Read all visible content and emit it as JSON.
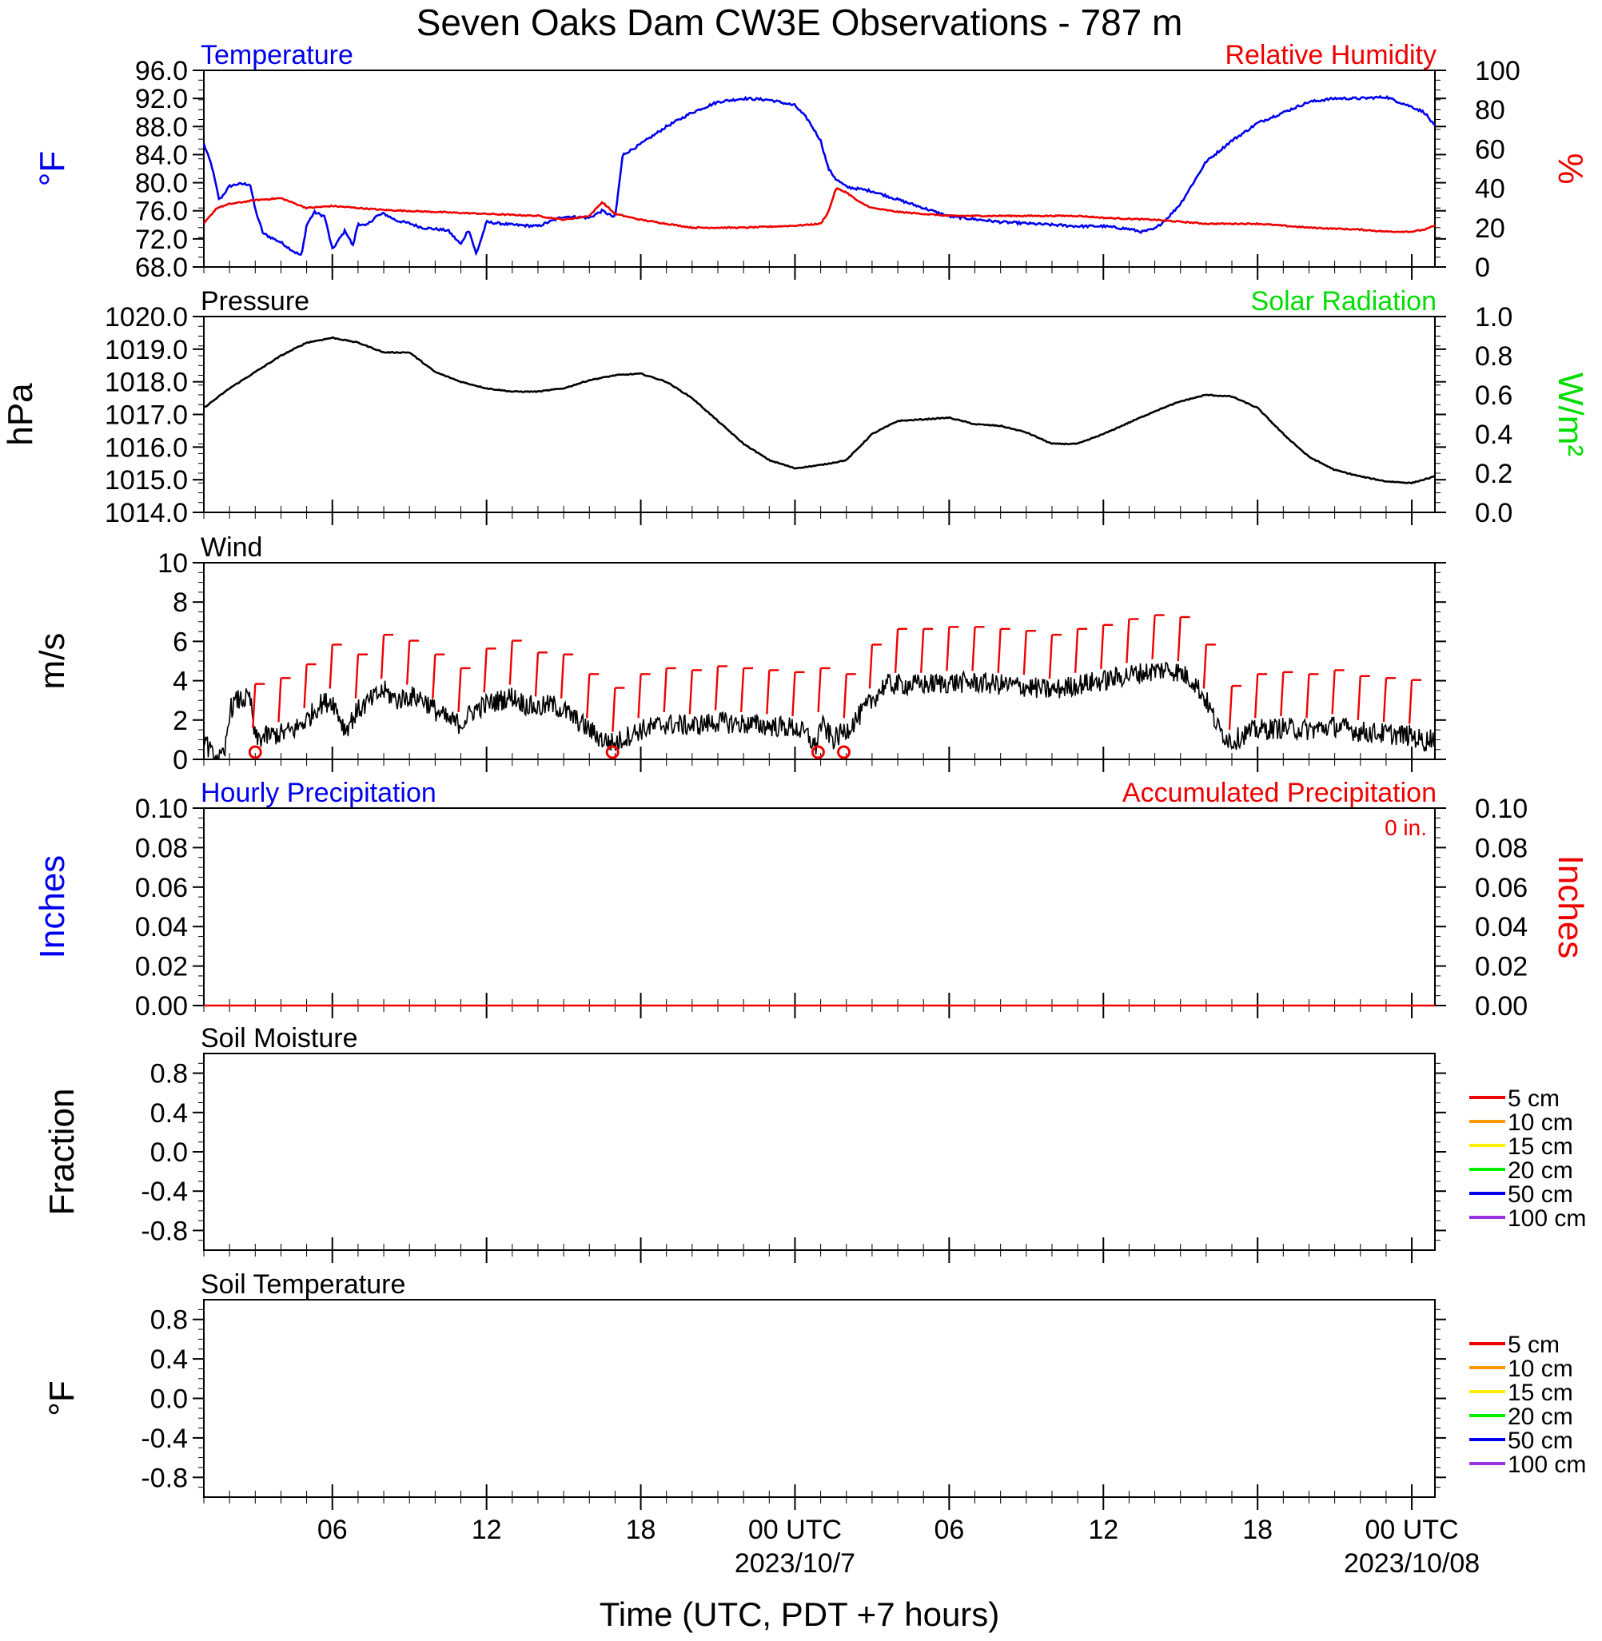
{
  "title": "Seven Oaks Dam CW3E Observations - 787 m",
  "xaxis": {
    "title": "Time (UTC, PDT +7 hours)",
    "ticks": [
      {
        "hour": 6,
        "label": "06",
        "sub": ""
      },
      {
        "hour": 12,
        "label": "12",
        "sub": ""
      },
      {
        "hour": 18,
        "label": "18",
        "sub": ""
      },
      {
        "hour": 24,
        "label": "00 UTC",
        "sub": "2023/10/7"
      },
      {
        "hour": 30,
        "label": "06",
        "sub": ""
      },
      {
        "hour": 36,
        "label": "12",
        "sub": ""
      },
      {
        "hour": 42,
        "label": "18",
        "sub": ""
      },
      {
        "hour": 48,
        "label": "00 UTC",
        "sub": "2023/10/08"
      }
    ],
    "range_hours": [
      1,
      48.9
    ]
  },
  "colors": {
    "temperature": "#0000ee",
    "humidity": "#ee0000",
    "pressure": "#000000",
    "solar": "#00dd00",
    "wind": "#000000",
    "barbs": "#ee0000"
  },
  "chart_data": [
    {
      "type": "line",
      "panel": "temperature-humidity",
      "left_title": "Temperature",
      "right_title": "Relative Humidity",
      "ylabel_left": "°F",
      "ylabel_right": "%",
      "ylim_left": [
        68,
        96
      ],
      "ylim_right": [
        0,
        100
      ],
      "yticks_left": [
        "96.0",
        "92.0",
        "88.0",
        "84.0",
        "80.0",
        "76.0",
        "72.0",
        "68.0"
      ],
      "yticks_right": [
        "100",
        "80",
        "60",
        "40",
        "20",
        "0"
      ],
      "series": [
        {
          "name": "Temperature",
          "axis": "left",
          "x": [
            1,
            1.3,
            1.6,
            2.0,
            2.3,
            2.8,
            3.0,
            3.3,
            3.5,
            4.0,
            4.5,
            4.8,
            5.0,
            5.3,
            5.7,
            6.0,
            6.5,
            6.8,
            7.0,
            7.3,
            7.7,
            8.0,
            8.5,
            9.0,
            9.5,
            10.0,
            10.5,
            11.0,
            11.3,
            11.6,
            12.0,
            13.0,
            14.0,
            15.0,
            16.0,
            16.5,
            17.0,
            17.3,
            17.6,
            18.0,
            19.0,
            20.0,
            21.0,
            22.0,
            23.0,
            24.0,
            24.5,
            25.0,
            25.3,
            25.6,
            26.0,
            27.0,
            28.0,
            29.0,
            30.0,
            31.0,
            32.0,
            33.0,
            34.0,
            35.0,
            36.0,
            37.0,
            37.5,
            38.0,
            38.5,
            39.0,
            39.5,
            40.0,
            40.5,
            41.0,
            41.5,
            42.0,
            43.0,
            44.0,
            45.0,
            46.0,
            47.0,
            47.5,
            48.0,
            48.5,
            48.9
          ],
          "values": [
            85.5,
            82.5,
            77.5,
            79.5,
            79.8,
            79.8,
            76.2,
            72.8,
            72.4,
            71.5,
            70.2,
            69.6,
            74.0,
            75.8,
            75.2,
            70.5,
            73.2,
            71.0,
            74.2,
            73.8,
            75.2,
            75.6,
            74.6,
            74.2,
            73.6,
            73.4,
            73.2,
            71.2,
            73.4,
            69.8,
            74.4,
            74.0,
            73.8,
            75.2,
            75.0,
            76.0,
            75.0,
            84.0,
            84.6,
            85.5,
            88.0,
            90.0,
            91.5,
            92.0,
            91.8,
            91.0,
            89.0,
            86.0,
            82.0,
            80.5,
            79.4,
            78.8,
            77.6,
            76.4,
            75.2,
            74.8,
            74.4,
            74.2,
            74.0,
            73.8,
            73.8,
            73.4,
            73.0,
            73.4,
            75.0,
            77.0,
            80.0,
            83.0,
            84.5,
            86.0,
            87.2,
            88.5,
            90.0,
            91.5,
            92.0,
            92.0,
            92.2,
            91.5,
            90.8,
            90.0,
            88.0
          ]
        },
        {
          "name": "Relative Humidity",
          "axis": "right",
          "x": [
            1,
            1.5,
            2.0,
            3.0,
            4.0,
            5.0,
            6.0,
            8.0,
            10.0,
            12.0,
            14.0,
            15.0,
            16.0,
            16.5,
            17.0,
            18.0,
            19.0,
            20.0,
            22.0,
            24.0,
            25.0,
            25.3,
            25.6,
            26.0,
            26.5,
            27.0,
            28.0,
            30.0,
            32.0,
            34.0,
            35.0,
            36.0,
            38.0,
            40.0,
            42.0,
            44.0,
            46.0,
            47.0,
            48.0,
            48.5,
            48.9
          ],
          "values": [
            22,
            30,
            32,
            34,
            35,
            30,
            31,
            29,
            28,
            27,
            26,
            24,
            26,
            33,
            27,
            24,
            22,
            20,
            20,
            21,
            22,
            28,
            40,
            38,
            33,
            30,
            28,
            26,
            26,
            26,
            26,
            25,
            24,
            22,
            22,
            20,
            19,
            18,
            18,
            19,
            21
          ]
        }
      ]
    },
    {
      "type": "line",
      "panel": "pressure-solar",
      "left_title": "Pressure",
      "right_title": "Solar Radiation",
      "ylabel_left": "hPa",
      "ylabel_right": "W/m²",
      "ylim_left": [
        1014,
        1020
      ],
      "ylim_right": [
        0,
        1
      ],
      "yticks_left": [
        "1020.0",
        "1019.0",
        "1018.0",
        "1017.0",
        "1016.0",
        "1015.0",
        "1014.0"
      ],
      "yticks_right": [
        "1.0",
        "0.8",
        "0.6",
        "0.4",
        "0.2",
        "0.0"
      ],
      "series": [
        {
          "name": "Pressure",
          "axis": "left",
          "x": [
            1,
            2,
            3,
            4,
            5,
            6,
            7,
            8,
            9,
            10,
            11,
            12,
            13,
            14,
            15,
            16,
            17,
            18,
            19,
            20,
            21,
            22,
            23,
            24,
            25,
            26,
            27,
            28,
            29,
            30,
            31,
            32,
            33,
            34,
            35,
            36,
            37,
            38,
            39,
            40,
            41,
            42,
            43,
            44,
            45,
            46,
            47,
            48,
            48.9
          ],
          "values": [
            1017.2,
            1017.8,
            1018.3,
            1018.8,
            1019.2,
            1019.35,
            1019.2,
            1018.9,
            1018.9,
            1018.3,
            1018.0,
            1017.8,
            1017.7,
            1017.7,
            1017.8,
            1018.05,
            1018.2,
            1018.25,
            1018.0,
            1017.5,
            1016.8,
            1016.1,
            1015.6,
            1015.35,
            1015.45,
            1015.6,
            1016.4,
            1016.8,
            1016.85,
            1016.9,
            1016.7,
            1016.65,
            1016.45,
            1016.1,
            1016.1,
            1016.4,
            1016.75,
            1017.1,
            1017.4,
            1017.6,
            1017.55,
            1017.2,
            1016.4,
            1015.7,
            1015.3,
            1015.1,
            1014.95,
            1014.9,
            1015.1
          ]
        }
      ]
    },
    {
      "type": "line",
      "panel": "wind",
      "left_title": "Wind",
      "ylabel_left": "m/s",
      "ylim_left": [
        0,
        10
      ],
      "yticks_left": [
        "10",
        "8",
        "6",
        "4",
        "2",
        "0"
      ],
      "series": [
        {
          "name": "Wind speed",
          "axis": "left",
          "x": [
            1,
            1.3,
            1.6,
            1.8,
            2.0,
            2.3,
            2.8,
            3.0,
            3.5,
            4.0,
            4.5,
            5.0,
            5.5,
            6.0,
            6.5,
            7.0,
            7.5,
            8.0,
            8.5,
            9.0,
            9.5,
            10.0,
            10.5,
            11.0,
            11.5,
            12.0,
            12.5,
            13.0,
            13.5,
            14.0,
            14.5,
            15.0,
            15.5,
            16.0,
            16.5,
            17.0,
            17.5,
            18.0,
            19.0,
            20.0,
            21.0,
            22.0,
            23.0,
            24.0,
            24.5,
            24.8,
            25.0,
            25.5,
            26.0,
            26.5,
            27.0,
            27.5,
            28.0,
            29.0,
            30.0,
            31.0,
            32.0,
            33.0,
            34.0,
            35.0,
            36.0,
            37.0,
            38.0,
            38.5,
            39.0,
            39.5,
            40.0,
            40.5,
            41.0,
            41.5,
            42.0,
            43.0,
            44.0,
            45.0,
            46.0,
            47.0,
            48.0,
            48.5,
            48.9
          ],
          "values": [
            1.2,
            0.2,
            0.0,
            0.1,
            2.5,
            3.0,
            3.1,
            1.0,
            1.2,
            1.3,
            1.5,
            2.0,
            2.8,
            3.0,
            1.5,
            2.5,
            3.0,
            3.5,
            3.0,
            3.2,
            3.1,
            2.5,
            2.0,
            1.8,
            2.5,
            2.8,
            3.0,
            3.2,
            2.8,
            2.6,
            2.8,
            2.5,
            2.0,
            1.5,
            1.0,
            0.8,
            1.2,
            1.5,
            1.8,
            1.7,
            1.9,
            1.8,
            1.7,
            1.6,
            1.2,
            0.6,
            1.8,
            1.0,
            1.5,
            2.2,
            3.0,
            3.8,
            3.8,
            3.8,
            3.9,
            3.9,
            3.8,
            3.7,
            3.5,
            3.8,
            4.0,
            4.3,
            4.5,
            4.6,
            4.4,
            4.0,
            3.0,
            1.5,
            0.9,
            1.3,
            1.5,
            1.6,
            1.5,
            1.7,
            1.4,
            1.3,
            1.2,
            0.9,
            1.2
          ]
        }
      ],
      "calm_circles_hours": [
        3.0,
        16.9,
        24.9,
        25.9
      ],
      "barbs_hours": [
        3,
        4,
        5,
        6,
        7,
        8,
        9,
        10,
        11,
        12,
        13,
        14,
        15,
        16,
        17,
        18,
        19,
        20,
        21,
        22,
        23,
        24,
        25,
        26,
        27,
        28,
        29,
        30,
        31,
        32,
        33,
        34,
        35,
        36,
        37,
        38,
        39,
        40,
        41,
        42,
        43,
        44,
        45,
        46,
        47,
        48
      ]
    },
    {
      "type": "line",
      "panel": "precipitation",
      "left_title": "Hourly Precipitation",
      "right_title": "Accumulated Precipitation",
      "annotation": "0 in.",
      "ylabel_left": "Inches",
      "ylabel_right": "Inches",
      "ylim_left": [
        0,
        0.1
      ],
      "ylim_right": [
        0,
        0.1
      ],
      "yticks_left": [
        "0.10",
        "0.08",
        "0.06",
        "0.04",
        "0.02",
        "0.00"
      ],
      "yticks_right": [
        "0.10",
        "0.08",
        "0.06",
        "0.04",
        "0.02",
        "0.00"
      ],
      "series": [
        {
          "name": "Accumulated Precipitation",
          "axis": "right",
          "x": [
            1,
            48.9
          ],
          "values": [
            0,
            0
          ]
        }
      ]
    },
    {
      "type": "line",
      "panel": "soil-moisture",
      "left_title": "Soil Moisture",
      "ylabel_left": "Fraction",
      "ylim_left": [
        -1,
        1
      ],
      "yticks_left": [
        "0.8",
        "0.4",
        "0.0",
        "-0.4",
        "-0.8"
      ],
      "legend": [
        {
          "label": "5 cm",
          "color": "#ee0000"
        },
        {
          "label": "10 cm",
          "color": "#ff9900"
        },
        {
          "label": "15 cm",
          "color": "#ffee00"
        },
        {
          "label": "20 cm",
          "color": "#00ee00"
        },
        {
          "label": "50 cm",
          "color": "#0000ee"
        },
        {
          "label": "100 cm",
          "color": "#9933dd"
        }
      ],
      "series": []
    },
    {
      "type": "line",
      "panel": "soil-temperature",
      "left_title": "Soil Temperature",
      "ylabel_left": "°F",
      "ylim_left": [
        -1,
        1
      ],
      "yticks_left": [
        "0.8",
        "0.4",
        "0.0",
        "-0.4",
        "-0.8"
      ],
      "legend": [
        {
          "label": "5 cm",
          "color": "#ee0000"
        },
        {
          "label": "10 cm",
          "color": "#ff9900"
        },
        {
          "label": "15 cm",
          "color": "#ffee00"
        },
        {
          "label": "20 cm",
          "color": "#00ee00"
        },
        {
          "label": "50 cm",
          "color": "#0000ee"
        },
        {
          "label": "100 cm",
          "color": "#9933dd"
        }
      ],
      "series": []
    }
  ]
}
